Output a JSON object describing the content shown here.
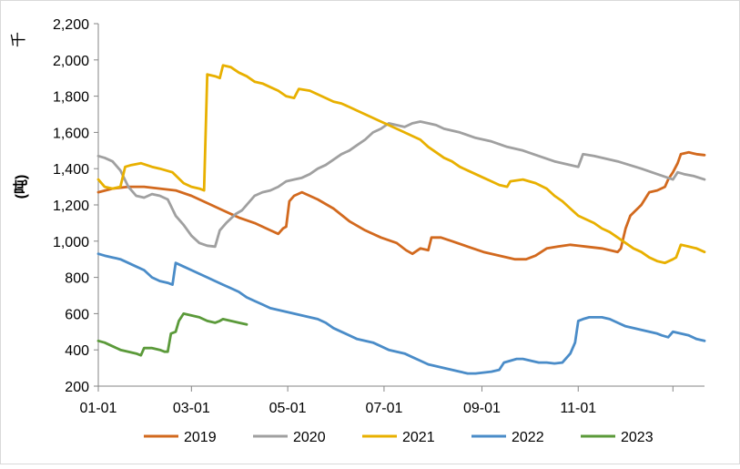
{
  "chart_data": {
    "type": "line",
    "ylabel_unit": "千",
    "ylabel": "(吨)",
    "xlabel": "",
    "title": "",
    "ylim": [
      200,
      2200
    ],
    "yticks": [
      200,
      400,
      600,
      800,
      1000,
      1200,
      1400,
      1600,
      1800,
      2000,
      2200
    ],
    "ytick_labels": [
      "200",
      "400",
      "600",
      "800",
      "1,000",
      "1,200",
      "1,400",
      "1,600",
      "1,800",
      "2,000",
      "2,200"
    ],
    "xlim": [
      1,
      365
    ],
    "xticks": [
      1,
      60,
      121,
      182,
      244,
      305,
      365
    ],
    "xtick_labels": [
      "01-01",
      "03-01",
      "05-01",
      "07-01",
      "09-01",
      "11-01",
      ""
    ],
    "grid": false,
    "legend_position": "bottom",
    "series": [
      {
        "name": "2019",
        "color": "#D2691E",
        "points": [
          [
            1,
            1270
          ],
          [
            10,
            1290
          ],
          [
            20,
            1300
          ],
          [
            30,
            1300
          ],
          [
            40,
            1290
          ],
          [
            50,
            1280
          ],
          [
            60,
            1250
          ],
          [
            70,
            1210
          ],
          [
            80,
            1170
          ],
          [
            90,
            1130
          ],
          [
            100,
            1100
          ],
          [
            110,
            1060
          ],
          [
            115,
            1040
          ],
          [
            118,
            1070
          ],
          [
            120,
            1080
          ],
          [
            122,
            1220
          ],
          [
            125,
            1250
          ],
          [
            130,
            1270
          ],
          [
            140,
            1230
          ],
          [
            150,
            1180
          ],
          [
            160,
            1110
          ],
          [
            170,
            1060
          ],
          [
            180,
            1020
          ],
          [
            190,
            990
          ],
          [
            196,
            950
          ],
          [
            200,
            930
          ],
          [
            205,
            960
          ],
          [
            210,
            950
          ],
          [
            212,
            1020
          ],
          [
            218,
            1020
          ],
          [
            225,
            1000
          ],
          [
            235,
            970
          ],
          [
            245,
            940
          ],
          [
            255,
            920
          ],
          [
            265,
            900
          ],
          [
            272,
            900
          ],
          [
            278,
            920
          ],
          [
            285,
            960
          ],
          [
            292,
            970
          ],
          [
            300,
            980
          ],
          [
            310,
            970
          ],
          [
            320,
            960
          ],
          [
            330,
            940
          ],
          [
            332,
            960
          ],
          [
            335,
            1070
          ],
          [
            338,
            1140
          ],
          [
            345,
            1200
          ],
          [
            350,
            1270
          ],
          [
            355,
            1280
          ],
          [
            360,
            1300
          ],
          [
            362,
            1340
          ],
          [
            365,
            1380
          ],
          [
            368,
            1430
          ],
          [
            370,
            1480
          ],
          [
            375,
            1490
          ],
          [
            380,
            1480
          ],
          [
            385,
            1475
          ]
        ]
      },
      {
        "name": "2020",
        "color": "#A0A0A0",
        "points": [
          [
            1,
            1470
          ],
          [
            5,
            1460
          ],
          [
            10,
            1440
          ],
          [
            15,
            1390
          ],
          [
            20,
            1300
          ],
          [
            25,
            1250
          ],
          [
            30,
            1240
          ],
          [
            35,
            1260
          ],
          [
            40,
            1250
          ],
          [
            45,
            1230
          ],
          [
            50,
            1140
          ],
          [
            55,
            1090
          ],
          [
            60,
            1030
          ],
          [
            65,
            990
          ],
          [
            70,
            975
          ],
          [
            75,
            970
          ],
          [
            78,
            1060
          ],
          [
            82,
            1100
          ],
          [
            88,
            1150
          ],
          [
            92,
            1170
          ],
          [
            95,
            1200
          ],
          [
            100,
            1250
          ],
          [
            105,
            1270
          ],
          [
            110,
            1280
          ],
          [
            115,
            1300
          ],
          [
            120,
            1330
          ],
          [
            125,
            1340
          ],
          [
            130,
            1350
          ],
          [
            135,
            1370
          ],
          [
            140,
            1400
          ],
          [
            145,
            1420
          ],
          [
            150,
            1450
          ],
          [
            155,
            1480
          ],
          [
            160,
            1500
          ],
          [
            165,
            1530
          ],
          [
            170,
            1560
          ],
          [
            175,
            1600
          ],
          [
            180,
            1620
          ],
          [
            185,
            1650
          ],
          [
            190,
            1640
          ],
          [
            195,
            1630
          ],
          [
            200,
            1650
          ],
          [
            205,
            1660
          ],
          [
            210,
            1650
          ],
          [
            215,
            1640
          ],
          [
            220,
            1620
          ],
          [
            230,
            1600
          ],
          [
            240,
            1570
          ],
          [
            250,
            1550
          ],
          [
            260,
            1520
          ],
          [
            270,
            1500
          ],
          [
            280,
            1470
          ],
          [
            290,
            1440
          ],
          [
            300,
            1420
          ],
          [
            305,
            1410
          ],
          [
            308,
            1480
          ],
          [
            315,
            1470
          ],
          [
            330,
            1440
          ],
          [
            345,
            1400
          ],
          [
            355,
            1370
          ],
          [
            365,
            1340
          ],
          [
            368,
            1380
          ],
          [
            372,
            1370
          ],
          [
            378,
            1360
          ],
          [
            385,
            1340
          ]
        ]
      },
      {
        "name": "2021",
        "color": "#E8B000",
        "points": [
          [
            1,
            1340
          ],
          [
            5,
            1300
          ],
          [
            10,
            1290
          ],
          [
            15,
            1300
          ],
          [
            18,
            1410
          ],
          [
            22,
            1420
          ],
          [
            28,
            1430
          ],
          [
            35,
            1410
          ],
          [
            40,
            1400
          ],
          [
            48,
            1380
          ],
          [
            55,
            1320
          ],
          [
            60,
            1300
          ],
          [
            65,
            1290
          ],
          [
            68,
            1280
          ],
          [
            70,
            1920
          ],
          [
            75,
            1910
          ],
          [
            78,
            1900
          ],
          [
            80,
            1970
          ],
          [
            85,
            1960
          ],
          [
            90,
            1930
          ],
          [
            95,
            1910
          ],
          [
            100,
            1880
          ],
          [
            105,
            1870
          ],
          [
            110,
            1850
          ],
          [
            115,
            1830
          ],
          [
            120,
            1800
          ],
          [
            125,
            1790
          ],
          [
            128,
            1840
          ],
          [
            135,
            1830
          ],
          [
            140,
            1810
          ],
          [
            145,
            1790
          ],
          [
            150,
            1770
          ],
          [
            155,
            1760
          ],
          [
            160,
            1740
          ],
          [
            165,
            1720
          ],
          [
            170,
            1700
          ],
          [
            175,
            1680
          ],
          [
            180,
            1660
          ],
          [
            185,
            1640
          ],
          [
            190,
            1620
          ],
          [
            195,
            1600
          ],
          [
            200,
            1580
          ],
          [
            205,
            1560
          ],
          [
            210,
            1520
          ],
          [
            215,
            1490
          ],
          [
            220,
            1460
          ],
          [
            225,
            1440
          ],
          [
            230,
            1410
          ],
          [
            235,
            1390
          ],
          [
            240,
            1370
          ],
          [
            245,
            1350
          ],
          [
            250,
            1330
          ],
          [
            255,
            1310
          ],
          [
            260,
            1300
          ],
          [
            262,
            1330
          ],
          [
            270,
            1340
          ],
          [
            278,
            1320
          ],
          [
            285,
            1290
          ],
          [
            290,
            1250
          ],
          [
            295,
            1220
          ],
          [
            300,
            1180
          ],
          [
            305,
            1140
          ],
          [
            310,
            1120
          ],
          [
            315,
            1100
          ],
          [
            320,
            1070
          ],
          [
            325,
            1050
          ],
          [
            330,
            1020
          ],
          [
            335,
            990
          ],
          [
            340,
            960
          ],
          [
            345,
            940
          ],
          [
            350,
            910
          ],
          [
            355,
            890
          ],
          [
            360,
            880
          ],
          [
            365,
            900
          ],
          [
            367,
            910
          ],
          [
            370,
            980
          ],
          [
            375,
            970
          ],
          [
            380,
            960
          ],
          [
            385,
            940
          ]
        ]
      },
      {
        "name": "2022",
        "color": "#4A8CC8",
        "points": [
          [
            1,
            930
          ],
          [
            5,
            920
          ],
          [
            10,
            910
          ],
          [
            15,
            900
          ],
          [
            20,
            880
          ],
          [
            25,
            860
          ],
          [
            30,
            840
          ],
          [
            35,
            800
          ],
          [
            40,
            780
          ],
          [
            45,
            770
          ],
          [
            48,
            760
          ],
          [
            50,
            880
          ],
          [
            55,
            860
          ],
          [
            60,
            840
          ],
          [
            65,
            820
          ],
          [
            70,
            800
          ],
          [
            75,
            780
          ],
          [
            80,
            760
          ],
          [
            85,
            740
          ],
          [
            90,
            720
          ],
          [
            95,
            690
          ],
          [
            100,
            670
          ],
          [
            105,
            650
          ],
          [
            110,
            630
          ],
          [
            115,
            620
          ],
          [
            120,
            610
          ],
          [
            125,
            600
          ],
          [
            130,
            590
          ],
          [
            135,
            580
          ],
          [
            140,
            570
          ],
          [
            145,
            550
          ],
          [
            150,
            520
          ],
          [
            155,
            500
          ],
          [
            160,
            480
          ],
          [
            165,
            460
          ],
          [
            170,
            450
          ],
          [
            175,
            440
          ],
          [
            180,
            420
          ],
          [
            185,
            400
          ],
          [
            190,
            390
          ],
          [
            195,
            380
          ],
          [
            200,
            360
          ],
          [
            205,
            340
          ],
          [
            210,
            320
          ],
          [
            215,
            310
          ],
          [
            220,
            300
          ],
          [
            225,
            290
          ],
          [
            230,
            280
          ],
          [
            235,
            270
          ],
          [
            240,
            270
          ],
          [
            245,
            275
          ],
          [
            250,
            280
          ],
          [
            255,
            290
          ],
          [
            258,
            330
          ],
          [
            262,
            340
          ],
          [
            266,
            350
          ],
          [
            270,
            350
          ],
          [
            275,
            340
          ],
          [
            280,
            330
          ],
          [
            285,
            330
          ],
          [
            290,
            325
          ],
          [
            295,
            330
          ],
          [
            300,
            380
          ],
          [
            303,
            440
          ],
          [
            305,
            560
          ],
          [
            308,
            570
          ],
          [
            312,
            580
          ],
          [
            316,
            580
          ],
          [
            320,
            580
          ],
          [
            325,
            570
          ],
          [
            330,
            550
          ],
          [
            335,
            530
          ],
          [
            340,
            520
          ],
          [
            345,
            510
          ],
          [
            350,
            500
          ],
          [
            355,
            490
          ],
          [
            358,
            480
          ],
          [
            362,
            470
          ],
          [
            365,
            500
          ],
          [
            370,
            490
          ],
          [
            375,
            480
          ],
          [
            380,
            460
          ],
          [
            385,
            450
          ]
        ]
      },
      {
        "name": "2023",
        "color": "#5B9A3A",
        "points": [
          [
            1,
            450
          ],
          [
            5,
            440
          ],
          [
            10,
            420
          ],
          [
            15,
            400
          ],
          [
            20,
            390
          ],
          [
            25,
            380
          ],
          [
            28,
            370
          ],
          [
            30,
            410
          ],
          [
            35,
            410
          ],
          [
            40,
            400
          ],
          [
            43,
            390
          ],
          [
            45,
            390
          ],
          [
            47,
            490
          ],
          [
            50,
            500
          ],
          [
            52,
            560
          ],
          [
            55,
            600
          ],
          [
            60,
            590
          ],
          [
            65,
            580
          ],
          [
            70,
            560
          ],
          [
            75,
            550
          ],
          [
            78,
            560
          ],
          [
            80,
            570
          ],
          [
            85,
            560
          ],
          [
            90,
            550
          ],
          [
            95,
            540
          ]
        ]
      }
    ]
  }
}
